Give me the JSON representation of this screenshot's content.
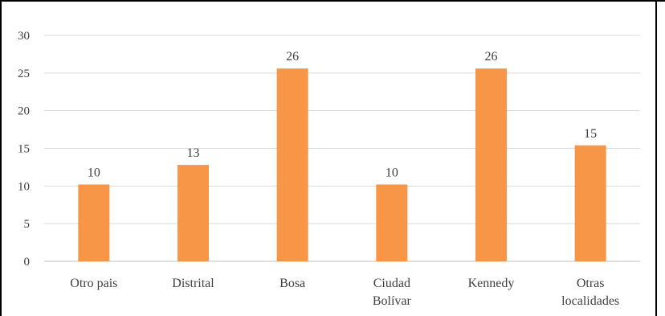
{
  "chart_data": {
    "type": "bar",
    "title": "",
    "xlabel": "",
    "ylabel": "",
    "ylim": [
      0,
      30
    ],
    "yticks": [
      0,
      5,
      10,
      15,
      20,
      25,
      30
    ],
    "grid": true,
    "categories": [
      [
        "Otro pais"
      ],
      [
        "Distrital"
      ],
      [
        "Bosa"
      ],
      [
        "Ciudad",
        "Bolívar"
      ],
      [
        "Kennedy"
      ],
      [
        "Otras",
        "localidades"
      ]
    ],
    "values": [
      10.2,
      12.8,
      25.6,
      10.2,
      25.6,
      15.4
    ],
    "data_labels": [
      "10",
      "13",
      "26",
      "10",
      "26",
      "15"
    ],
    "colors": {
      "bar": "#F79646",
      "grid": "#D9D9D9",
      "text": "#404040"
    }
  }
}
